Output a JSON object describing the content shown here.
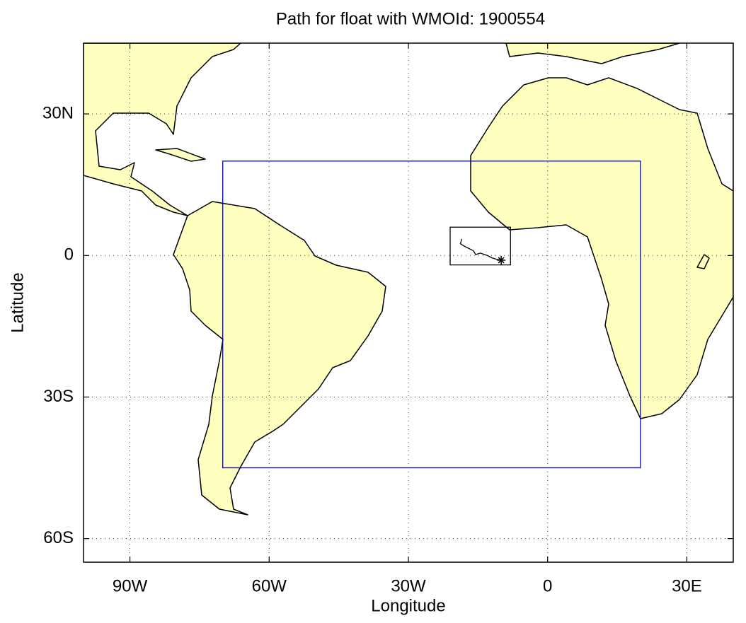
{
  "chart_data": {
    "type": "map",
    "title": "Path for float with WMOId: 1900554",
    "x_label": "Longitude",
    "y_label": "Latitude",
    "xlim": [
      -100,
      40
    ],
    "ylim": [
      -65,
      45
    ],
    "xticks": [
      {
        "value": -90,
        "label": "90W"
      },
      {
        "value": -60,
        "label": "60W"
      },
      {
        "value": -30,
        "label": "30W"
      },
      0,
      {
        "value": 30,
        "label": "30E"
      }
    ],
    "yticks": [
      {
        "value": -60,
        "label": "60S"
      },
      {
        "value": -30,
        "label": "30S"
      },
      0,
      {
        "value": 30,
        "label": "30N"
      }
    ],
    "grid": true,
    "region": {
      "lon": [
        -70,
        20
      ],
      "lat": [
        -45,
        20
      ],
      "color": "#0000cc"
    },
    "float_box": {
      "lon": [
        -21,
        -8
      ],
      "lat": [
        -2,
        6
      ],
      "color": "#000000"
    },
    "path": {
      "lon": [
        -18.5,
        -18.8,
        -18,
        -17,
        -16,
        -15.5,
        -14.5,
        -13,
        -12,
        -11,
        -10
      ],
      "lat": [
        3.5,
        2.5,
        2,
        1.5,
        1,
        0.2,
        0.5,
        0,
        -0.5,
        -0.8,
        -1
      ],
      "color": "#000000"
    }
  }
}
